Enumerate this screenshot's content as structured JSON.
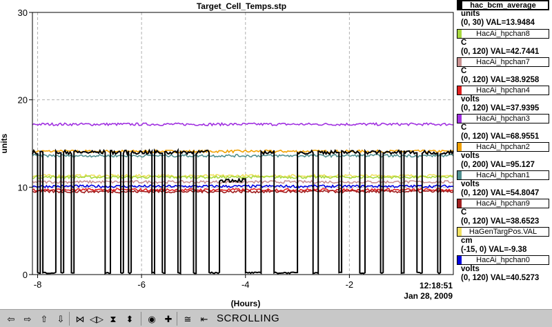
{
  "chart_data": {
    "type": "line",
    "title": "Target_Cell_Temps.stp",
    "xlabel": "(Hours)",
    "ylabel": "units",
    "xlim": [
      -8.1,
      0
    ],
    "ylim": [
      0,
      30
    ],
    "x_ticks": [
      -8,
      -6,
      -4,
      -2
    ],
    "x_tick_labels": [
      "-8",
      "-6",
      "-4",
      "-2"
    ],
    "y_ticks": [
      0,
      10,
      20,
      30
    ],
    "y_tick_labels": [
      "0",
      "10",
      "20",
      "30"
    ],
    "end_time": "12:18:51",
    "end_date": "Jan 28, 2009",
    "grid": true,
    "series": [
      {
        "name": "hac_bcm_average",
        "color": "#000000",
        "unit": "units",
        "range": "(0, 30)",
        "current": "VAL=13.9484",
        "pattern": "switching",
        "high": 14.0,
        "low": 0.2,
        "segments": [
          [
            -8.1,
            -8.0,
            "high"
          ],
          [
            -8.0,
            -7.95,
            "low"
          ],
          [
            -7.95,
            -7.9,
            "high"
          ],
          [
            -7.9,
            -7.65,
            "low"
          ],
          [
            -7.65,
            -7.55,
            "high"
          ],
          [
            -7.55,
            -7.5,
            "low"
          ],
          [
            -7.5,
            -7.35,
            "high"
          ],
          [
            -7.35,
            -7.3,
            "low"
          ],
          [
            -7.3,
            -6.7,
            "high"
          ],
          [
            -6.7,
            -6.6,
            "low"
          ],
          [
            -6.6,
            -6.4,
            "high"
          ],
          [
            -6.4,
            -6.35,
            "low"
          ],
          [
            -6.35,
            -6.25,
            "high"
          ],
          [
            -6.25,
            -6.2,
            "low"
          ],
          [
            -6.2,
            -5.8,
            "high"
          ],
          [
            -5.8,
            -5.75,
            "low"
          ],
          [
            -5.75,
            -5.6,
            "high"
          ],
          [
            -5.6,
            -5.55,
            "low"
          ],
          [
            -5.55,
            -5.3,
            "high"
          ],
          [
            -5.3,
            -5.25,
            "low"
          ],
          [
            -5.25,
            -5.0,
            "high"
          ],
          [
            -5.0,
            -4.95,
            "low"
          ],
          [
            -4.95,
            -4.7,
            "high"
          ],
          [
            -4.7,
            -4.5,
            "low"
          ],
          [
            -4.5,
            -4.0,
            "mid"
          ],
          [
            -4.0,
            -3.7,
            "low"
          ],
          [
            -3.7,
            -3.45,
            "high"
          ],
          [
            -3.45,
            -3.0,
            "low"
          ],
          [
            -3.0,
            -2.7,
            "high"
          ],
          [
            -2.7,
            -2.6,
            "low"
          ],
          [
            -2.6,
            -2.2,
            "high"
          ],
          [
            -2.2,
            -2.15,
            "low"
          ],
          [
            -2.15,
            -1.8,
            "high"
          ],
          [
            -1.8,
            -1.7,
            "low"
          ],
          [
            -1.7,
            -1.4,
            "high"
          ],
          [
            -1.4,
            -1.35,
            "low"
          ],
          [
            -1.35,
            -1.0,
            "high"
          ],
          [
            -1.0,
            -0.95,
            "low"
          ],
          [
            -0.95,
            -0.7,
            "high"
          ],
          [
            -0.7,
            -0.6,
            "low"
          ],
          [
            -0.6,
            -0.3,
            "high"
          ],
          [
            -0.3,
            -0.25,
            "low"
          ],
          [
            -0.25,
            0,
            "high"
          ]
        ]
      },
      {
        "name": "HacAi_hpchan8",
        "color": "#a8d840",
        "unit": "C",
        "range": "(0, 120)",
        "current": "VAL=42.7441",
        "level": 11.15
      },
      {
        "name": "HacAi_hpchan7",
        "color": "#c89090",
        "unit": "C",
        "range": "(0, 120)",
        "current": "VAL=38.9258",
        "level": 10.6
      },
      {
        "name": "HacAi_hpchan4",
        "color": "#e02020",
        "unit": "volts",
        "range": "(0, 120)",
        "current": "VAL=37.9395",
        "level": 9.7
      },
      {
        "name": "HacAi_hpchan3",
        "color": "#a030e0",
        "unit": "C",
        "range": "(0, 120)",
        "current": "VAL=68.9551",
        "level": 17.2
      },
      {
        "name": "HacAi_hpchan2",
        "color": "#f0a000",
        "unit": "volts",
        "range": "(0, 200)",
        "current": "VAL=95.127",
        "level": 14.1
      },
      {
        "name": "HacAi_hpchan1",
        "color": "#509090",
        "unit": "volts",
        "range": "(0, 120)",
        "current": "VAL=54.8047",
        "level": 13.6
      },
      {
        "name": "HacAi_hpchan9",
        "color": "#a02020",
        "unit": "C",
        "range": "(0, 120)",
        "current": "VAL=38.6523",
        "level": 9.5
      },
      {
        "name": "HaGenTargPos.VAL",
        "color": "#f0e060",
        "unit": "cm",
        "range": "(-15, 0)",
        "current": "VAL=-9.38",
        "level": 11.3
      },
      {
        "name": "HacAi_hpchan0",
        "color": "#0000e0",
        "unit": "volts",
        "range": "(0, 120)",
        "current": "VAL=40.5273",
        "level": 10.1
      }
    ]
  },
  "toolbar": {
    "status": "SCROLLING",
    "buttons": [
      {
        "icon": "arrow-left-icon",
        "glyph": "⇦"
      },
      {
        "icon": "arrow-right-icon",
        "glyph": "⇨"
      },
      {
        "icon": "arrow-up-icon",
        "glyph": "⇧"
      },
      {
        "icon": "arrow-down-icon",
        "glyph": "⇩"
      },
      {
        "icon": "zoom-in-horizontal-icon",
        "glyph": "⋈"
      },
      {
        "icon": "zoom-out-horizontal-icon",
        "glyph": "◁▷"
      },
      {
        "icon": "zoom-in-vertical-icon",
        "glyph": "⧗"
      },
      {
        "icon": "zoom-out-vertical-icon",
        "glyph": "⬍"
      },
      {
        "icon": "config-icon",
        "glyph": "◉"
      },
      {
        "icon": "add-icon",
        "glyph": "✚"
      },
      {
        "icon": "scroll-mode-icon",
        "glyph": "≅"
      },
      {
        "icon": "go-end-icon",
        "glyph": "⇤"
      }
    ]
  }
}
